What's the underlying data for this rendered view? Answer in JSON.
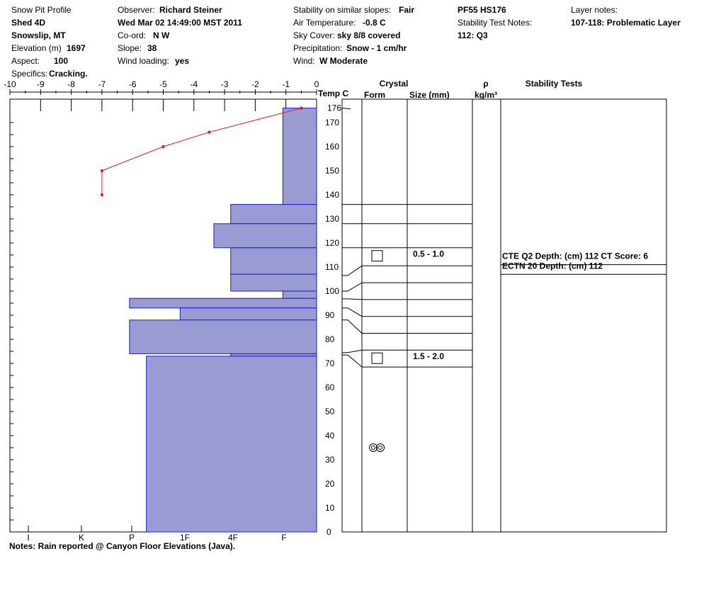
{
  "header": {
    "title": "Snow Pit Profile",
    "location": "Shed 4D",
    "region": "Snowslip, MT",
    "elevation_label": "Elevation (m)",
    "elevation": "1697",
    "aspect_label": "Aspect:",
    "aspect": "100",
    "specifics_label": "Specifics:",
    "specifics": "Cracking.",
    "observer_label": "Observer:",
    "observer": "Richard Steiner",
    "datetime": "Wed Mar 02 14:49:00 MST 2011",
    "coord_label": "Co-ord:",
    "coord": "N  W",
    "slope_label": "Slope:",
    "slope": "38",
    "wind_loading_label": "Wind loading:",
    "wind_loading": "yes",
    "stability_label": "Stability on similar slopes:",
    "stability": "Fair",
    "air_temp_label": "Air Temperature:",
    "air_temp": "-0.8 C",
    "sky_label": "Sky Cover:",
    "sky": "sky 8/8 covered",
    "precip_label": "Precipitation:",
    "precip": "Snow - 1 cm/hr",
    "wind_label": "Wind:",
    "wind": "W Moderate",
    "pit_id": "PF55 HS176",
    "stability_test_notes_label": "Stability Test Notes:",
    "stability_test_note": "112: Q3",
    "layer_notes_label": "Layer notes:",
    "layer_note": "107-118: Problematic Layer"
  },
  "notes": "Notes:  Rain reported @ Canyon Floor Elevations (Java).",
  "columns": {
    "temp": "Temp C",
    "crystal": "Crystal",
    "form": "Form",
    "size": "Size (mm)",
    "rho": "ρ",
    "density_unit": "kg/m³",
    "stability_tests": "Stability Tests"
  },
  "chart_data": {
    "type": "snow_pit_profile",
    "total_depth_cm": 176,
    "temp_axis": {
      "label": "Temp C",
      "ticks": [
        -10,
        -9,
        -8,
        -7,
        -6,
        -5,
        -4,
        -3,
        -2,
        -1,
        0
      ],
      "range": [
        -10,
        0
      ]
    },
    "hardness_axis": {
      "ticks": [
        "I",
        "K",
        "P",
        "1F",
        "4F",
        "F"
      ]
    },
    "height_axis": {
      "range": [
        0,
        176
      ],
      "ticks": [
        0,
        10,
        20,
        30,
        40,
        50,
        60,
        70,
        80,
        90,
        100,
        110,
        120,
        130,
        140,
        150,
        160,
        170,
        176
      ]
    },
    "temperature_profile": [
      {
        "height": 176,
        "temp": -0.5
      },
      {
        "height": 166,
        "temp": -3.5
      },
      {
        "height": 160,
        "temp": -5
      },
      {
        "height": 150,
        "temp": -7
      },
      {
        "height": 140,
        "temp": -7
      }
    ],
    "hardness_layers": [
      {
        "bottom": 136,
        "top": 176,
        "temp_edge": -1.1
      },
      {
        "bottom": 128,
        "top": 136,
        "temp_edge": -2.8
      },
      {
        "bottom": 118,
        "top": 128,
        "temp_edge": -3.35
      },
      {
        "bottom": 107,
        "top": 118,
        "temp_edge": -2.8
      },
      {
        "bottom": 100,
        "top": 107,
        "temp_edge": -2.8
      },
      {
        "bottom": 97,
        "top": 100,
        "temp_edge": -1.1
      },
      {
        "bottom": 93,
        "top": 97,
        "temp_edge": -6.1
      },
      {
        "bottom": 88,
        "top": 93,
        "temp_edge": -4.45
      },
      {
        "bottom": 74,
        "top": 88,
        "temp_edge": -6.1
      },
      {
        "bottom": 73,
        "top": 74,
        "temp_edge": -2.8
      },
      {
        "bottom": 0,
        "top": 73,
        "temp_edge": -5.55
      }
    ],
    "layer_boundaries": [
      136,
      128,
      118,
      110.5,
      103.5,
      96.5,
      89.5,
      82.5,
      75.5,
      68.5
    ],
    "layer_bends": [
      {
        "height": 110.5,
        "left_height": 106.5
      },
      {
        "height": 103.5,
        "left_height": 100
      },
      {
        "height": 96.5,
        "left_height": 96.8
      },
      {
        "height": 89.5,
        "left_height": 93
      },
      {
        "height": 82.5,
        "left_height": 88
      },
      {
        "height": 75.5,
        "left_height": 74.5
      },
      {
        "height": 68.5,
        "left_height": 73.5
      }
    ],
    "crystals": [
      {
        "height": 114.5,
        "form": "square",
        "size": "0.5 - 1.0"
      },
      {
        "height": 72,
        "form": "square",
        "size": "1.5 - 2.0"
      },
      {
        "height": 35,
        "form": "melt-cluster",
        "size": ""
      }
    ],
    "stability_tests": [
      {
        "height": 114.5,
        "text": "CTE Q2 Depth: (cm) 112 CT Score: 6"
      },
      {
        "height": 110.5,
        "text": "ECTN 20   Depth: (cm) 112"
      }
    ],
    "test_lines": [
      111,
      107
    ]
  }
}
